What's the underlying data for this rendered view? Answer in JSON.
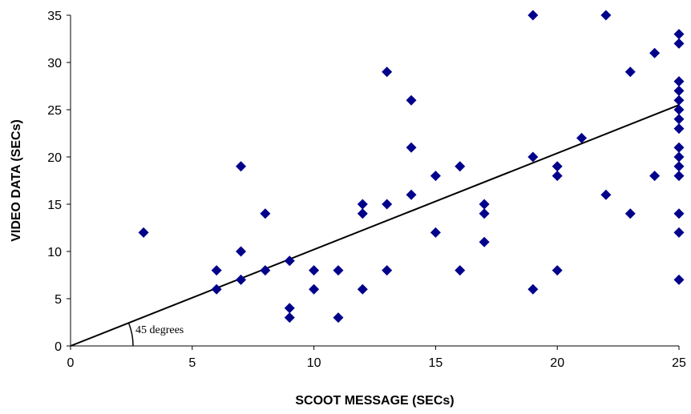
{
  "chart_data": {
    "type": "scatter",
    "xlabel": "SCOOT MESSAGE (SECs)",
    "ylabel": "VIDEO DATA (SECs)",
    "xlim": [
      0,
      25
    ],
    "ylim": [
      0,
      35
    ],
    "x_ticks": [
      "0",
      "5",
      "10",
      "15",
      "20",
      "25"
    ],
    "y_ticks": [
      "0",
      "5",
      "10",
      "15",
      "20",
      "25",
      "30",
      "35"
    ],
    "grid": false,
    "marker_color": "#00008B",
    "series": [
      {
        "points": [
          [
            3,
            12
          ],
          [
            6,
            8
          ],
          [
            6,
            6
          ],
          [
            7,
            19
          ],
          [
            7,
            10
          ],
          [
            7,
            7
          ],
          [
            8,
            14
          ],
          [
            8,
            8
          ],
          [
            9,
            9
          ],
          [
            9,
            4
          ],
          [
            9,
            3
          ],
          [
            10,
            8
          ],
          [
            10,
            6
          ],
          [
            11,
            8
          ],
          [
            11,
            3
          ],
          [
            12,
            15
          ],
          [
            12,
            14
          ],
          [
            12,
            6
          ],
          [
            13,
            29
          ],
          [
            13,
            15
          ],
          [
            13,
            8
          ],
          [
            14,
            26
          ],
          [
            14,
            21
          ],
          [
            14,
            16
          ],
          [
            15,
            18
          ],
          [
            15,
            12
          ],
          [
            16,
            19
          ],
          [
            16,
            8
          ],
          [
            17,
            15
          ],
          [
            17,
            14
          ],
          [
            17,
            11
          ],
          [
            19,
            35
          ],
          [
            19,
            20
          ],
          [
            19,
            6
          ],
          [
            20,
            19
          ],
          [
            20,
            18
          ],
          [
            20,
            8
          ],
          [
            21,
            22
          ],
          [
            22,
            35
          ],
          [
            22,
            16
          ],
          [
            23,
            29
          ],
          [
            23,
            14
          ],
          [
            24,
            31
          ],
          [
            24,
            18
          ],
          [
            25,
            33
          ],
          [
            25,
            32
          ],
          [
            25,
            28
          ],
          [
            25,
            27
          ],
          [
            25,
            26
          ],
          [
            25,
            25
          ],
          [
            25,
            24
          ],
          [
            25,
            23
          ],
          [
            25,
            21
          ],
          [
            25,
            20
          ],
          [
            25,
            19
          ],
          [
            25,
            18
          ],
          [
            25,
            14
          ],
          [
            25,
            12
          ],
          [
            25,
            7
          ]
        ]
      }
    ],
    "reference_line": {
      "from": [
        0,
        0
      ],
      "to": [
        25,
        25.5
      ]
    },
    "annotations": [
      {
        "text": "45 degrees"
      }
    ]
  }
}
